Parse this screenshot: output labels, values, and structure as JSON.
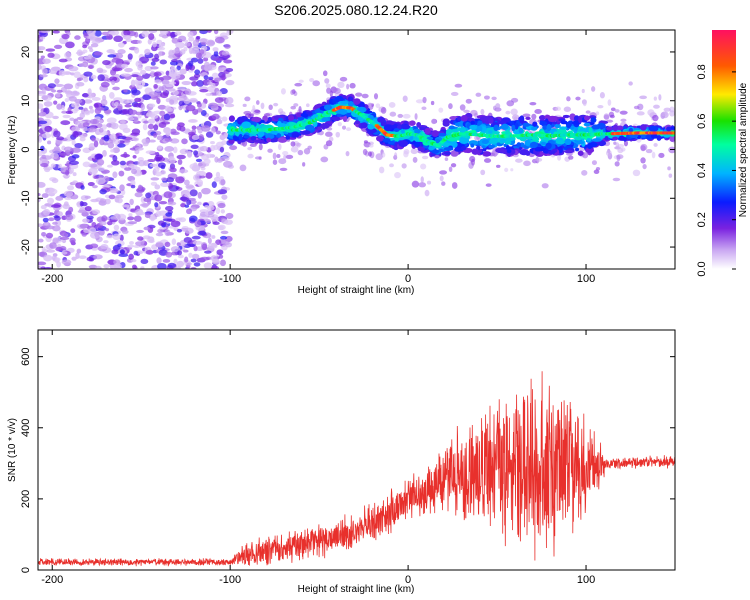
{
  "chart_data": [
    {
      "type": "heatmap",
      "title": "S206.2025.080.12.24.R20",
      "xlabel": "Height of straight line (km)",
      "ylabel": "Frequency (Hz)",
      "xlim": [
        -208,
        150
      ],
      "ylim": [
        -24.5,
        24.5
      ],
      "x_ticks": [
        -200,
        -100,
        0,
        100
      ],
      "y_ticks": [
        -20,
        -10,
        0,
        10,
        20
      ],
      "colorbar": {
        "label": "Normalized spectral amplitude",
        "range": [
          0,
          0.97
        ],
        "ticks": [
          0.0,
          0.2,
          0.4,
          0.6,
          0.8
        ]
      },
      "ridge": {
        "description_points": [
          [
            -100,
            4.0
          ],
          [
            -80,
            4.0
          ],
          [
            -65,
            4.5
          ],
          [
            -55,
            5.5
          ],
          [
            -45,
            7.5
          ],
          [
            -38,
            8.7
          ],
          [
            -32,
            8.5
          ],
          [
            -25,
            6.8
          ],
          [
            -18,
            5.0
          ],
          [
            -12,
            3.0
          ],
          [
            -5,
            2.7
          ],
          [
            0,
            3.2
          ],
          [
            5,
            3.0
          ],
          [
            12,
            1.5
          ],
          [
            17,
            0.8
          ],
          [
            22,
            2.5
          ],
          [
            30,
            3.2
          ],
          [
            40,
            3.0
          ],
          [
            50,
            2.7
          ],
          [
            60,
            2.8
          ],
          [
            70,
            3.0
          ],
          [
            80,
            2.8
          ],
          [
            90,
            3.0
          ],
          [
            100,
            3.0
          ],
          [
            110,
            3.2
          ],
          [
            120,
            3.3
          ],
          [
            130,
            3.4
          ],
          [
            140,
            3.4
          ],
          [
            150,
            3.4
          ]
        ]
      }
    },
    {
      "type": "line",
      "xlabel": "Height of straight line (km)",
      "ylabel": "SNR (10 * v/v)",
      "xlim": [
        -208,
        150
      ],
      "ylim": [
        0,
        675
      ],
      "x_ticks": [
        -200,
        -100,
        0,
        100
      ],
      "y_ticks": [
        0,
        200,
        400,
        600
      ],
      "color": "#e8302c",
      "envelope": [
        {
          "x": -208,
          "base": 22,
          "amp": 12
        },
        {
          "x": -100,
          "base": 22,
          "amp": 12
        },
        {
          "x": -90,
          "base": 45,
          "amp": 45
        },
        {
          "x": -70,
          "base": 60,
          "amp": 50
        },
        {
          "x": -50,
          "base": 80,
          "amp": 55
        },
        {
          "x": -30,
          "base": 110,
          "amp": 60
        },
        {
          "x": -10,
          "base": 160,
          "amp": 70
        },
        {
          "x": 0,
          "base": 200,
          "amp": 70
        },
        {
          "x": 15,
          "base": 240,
          "amp": 90
        },
        {
          "x": 25,
          "base": 260,
          "amp": 140
        },
        {
          "x": 40,
          "base": 280,
          "amp": 200
        },
        {
          "x": 60,
          "base": 290,
          "amp": 250
        },
        {
          "x": 75,
          "base": 290,
          "amp": 290
        },
        {
          "x": 90,
          "base": 290,
          "amp": 240
        },
        {
          "x": 105,
          "base": 295,
          "amp": 130
        },
        {
          "x": 112,
          "base": 300,
          "amp": 20
        },
        {
          "x": 150,
          "base": 305,
          "amp": 20
        }
      ]
    }
  ]
}
